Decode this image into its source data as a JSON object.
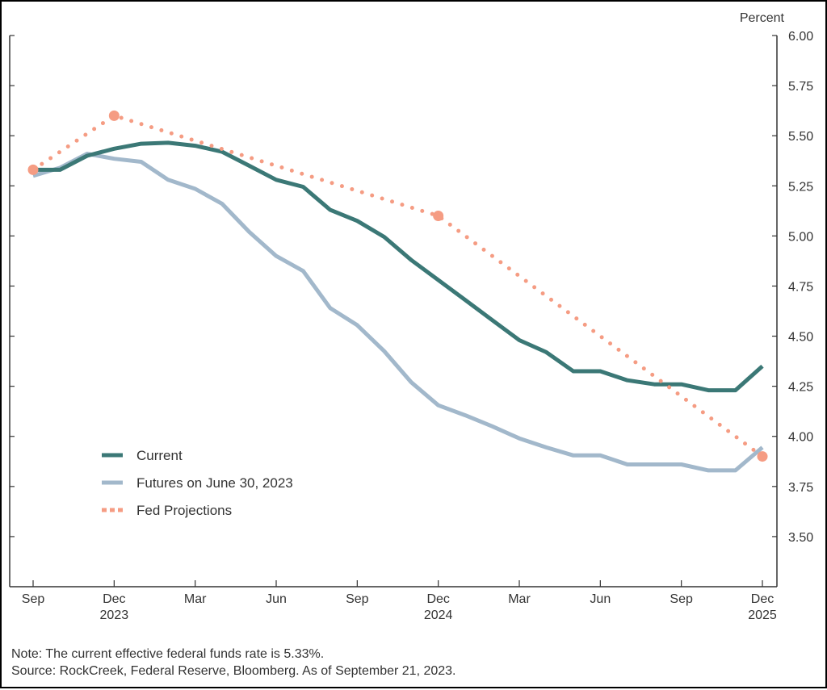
{
  "chart_data": {
    "type": "line",
    "ylabel": "Percent",
    "ylim": [
      3.25,
      6.0
    ],
    "y_ticks": [
      "3.50",
      "3.75",
      "4.00",
      "4.25",
      "4.50",
      "4.75",
      "5.00",
      "5.25",
      "5.50",
      "5.75",
      "6.00"
    ],
    "x_ticks": [
      {
        "month": "Sep",
        "year": ""
      },
      {
        "month": "Dec",
        "year": "2023"
      },
      {
        "month": "Mar",
        "year": ""
      },
      {
        "month": "Jun",
        "year": ""
      },
      {
        "month": "Sep",
        "year": ""
      },
      {
        "month": "Dec",
        "year": "2024"
      },
      {
        "month": "Mar",
        "year": ""
      },
      {
        "month": "Jun",
        "year": ""
      },
      {
        "month": "Sep",
        "year": ""
      },
      {
        "month": "Dec",
        "year": "2025"
      }
    ],
    "x": [
      "Sep 2023",
      "Oct 2023",
      "Nov 2023",
      "Dec 2023",
      "Jan 2024",
      "Feb 2024",
      "Mar 2024",
      "Apr 2024",
      "May 2024",
      "Jun 2024",
      "Jul 2024",
      "Aug 2024",
      "Sep 2024",
      "Oct 2024",
      "Nov 2024",
      "Dec 2024",
      "Jan 2025",
      "Feb 2025",
      "Mar 2025",
      "Apr 2025",
      "May 2025",
      "Jun 2025",
      "Jul 2025",
      "Aug 2025",
      "Sep 2025",
      "Oct 2025",
      "Nov 2025",
      "Dec 2025"
    ],
    "series": [
      {
        "name": "Current",
        "color": "#3b7876",
        "style": "solid",
        "values": [
          5.33,
          5.33,
          5.4,
          5.435,
          5.46,
          5.465,
          5.45,
          5.42,
          5.35,
          5.28,
          5.245,
          5.13,
          5.075,
          4.995,
          4.88,
          4.78,
          4.68,
          4.58,
          4.48,
          4.42,
          4.325,
          4.325,
          4.28,
          4.26,
          4.26,
          4.23,
          4.23,
          4.35
        ]
      },
      {
        "name": "Futures on June 30, 2023",
        "color": "#a2b8cb",
        "style": "solid",
        "values": [
          5.3,
          5.34,
          5.41,
          5.385,
          5.37,
          5.28,
          5.235,
          5.16,
          5.02,
          4.9,
          4.825,
          4.64,
          4.555,
          4.425,
          4.27,
          4.155,
          4.105,
          4.05,
          3.99,
          3.945,
          3.905,
          3.905,
          3.86,
          3.86,
          3.86,
          3.83,
          3.83,
          3.945
        ]
      },
      {
        "name": "Fed Projections",
        "color": "#f59c83",
        "style": "dotted",
        "x": [
          "Sep 2023",
          "Dec 2023",
          "Dec 2024",
          "Dec 2025"
        ],
        "values": [
          5.33,
          5.6,
          5.1,
          3.9
        ]
      }
    ],
    "legend_position": "lower-left",
    "grid": false
  },
  "notes": {
    "line1": "Note: The current effective federal funds rate is 5.33%.",
    "line2": "Source: RockCreek, Federal Reserve, Bloomberg. As of September 21, 2023."
  }
}
